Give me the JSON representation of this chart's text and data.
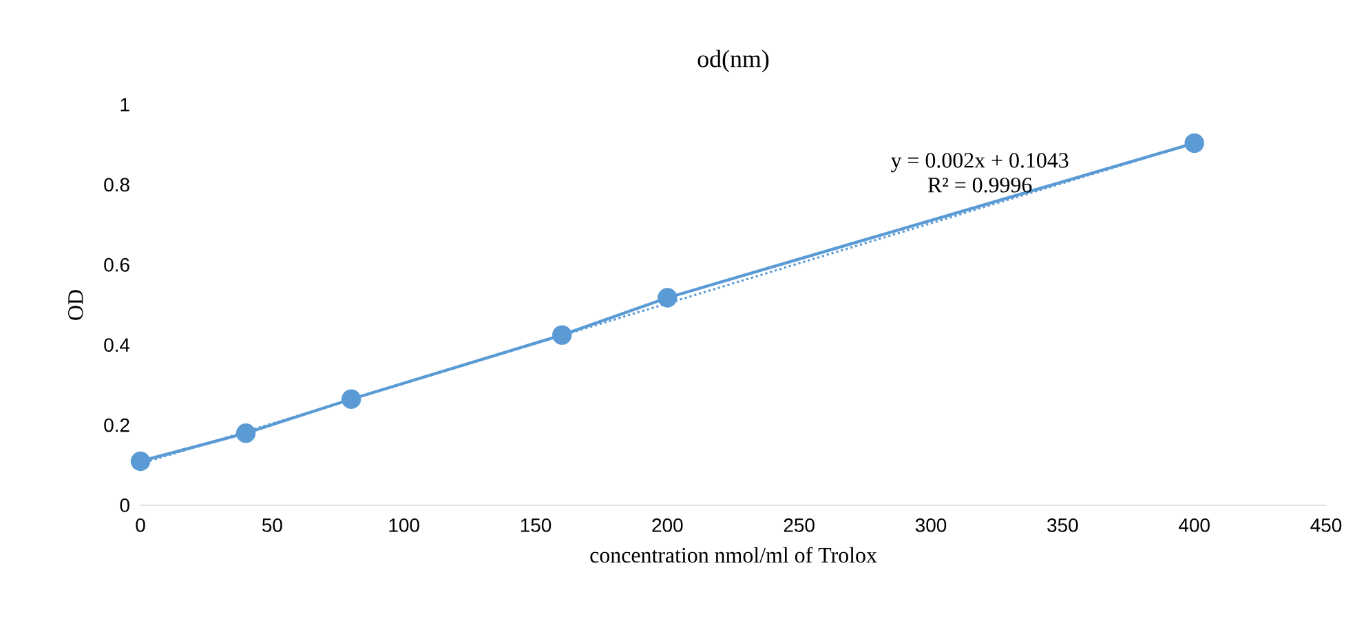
{
  "chart_data": {
    "type": "line",
    "title": "od(nm)",
    "xlabel": "concentration nmol/ml of Trolox",
    "ylabel": "OD",
    "series": [
      {
        "color": "#5b9bd5",
        "x": [
          0,
          40,
          80,
          160,
          200,
          400
        ],
        "values": [
          0.11,
          0.18,
          0.265,
          0.425,
          0.518,
          0.904
        ],
        "marker": "circle",
        "line_style": "solid"
      },
      {
        "color": "#5b9bd5",
        "x": [
          0,
          400
        ],
        "values": [
          0.104,
          0.904
        ],
        "marker": "none",
        "line_style": "dotted"
      }
    ],
    "annotations": [
      "y = 0.002x + 0.1043",
      "R² = 0.9996"
    ],
    "xlim": [
      0,
      450
    ],
    "xticks": [
      0,
      50,
      100,
      150,
      200,
      250,
      300,
      350,
      400,
      450
    ],
    "ylim": [
      0,
      1
    ],
    "yticks": [
      0,
      0.2,
      0.4,
      0.6,
      0.8,
      1
    ],
    "grid": false
  }
}
